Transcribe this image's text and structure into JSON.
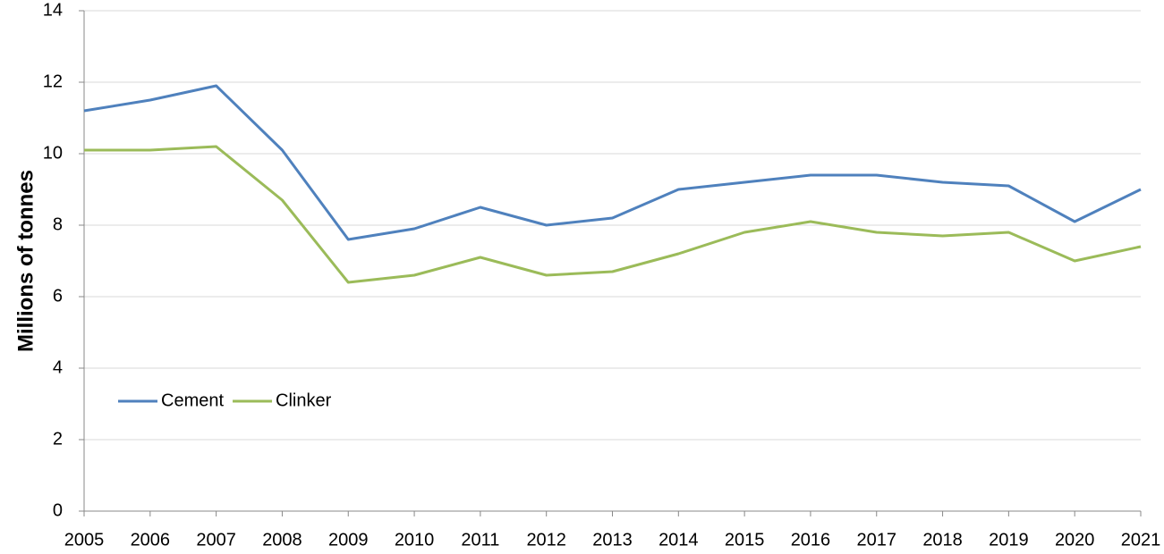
{
  "chart_data": {
    "type": "line",
    "y_label": "Millions of tonnes",
    "x": [
      2005,
      2006,
      2007,
      2008,
      2009,
      2010,
      2011,
      2012,
      2013,
      2014,
      2015,
      2016,
      2017,
      2018,
      2019,
      2020,
      2021
    ],
    "series": [
      {
        "name": "Cement",
        "color": "#4f81bd",
        "values": [
          11.2,
          11.5,
          11.9,
          10.1,
          7.6,
          7.9,
          8.5,
          8.0,
          8.2,
          9.0,
          9.2,
          9.4,
          9.4,
          9.2,
          9.1,
          8.1,
          9.0
        ]
      },
      {
        "name": "Clinker",
        "color": "#9bbb59",
        "values": [
          10.1,
          10.1,
          10.2,
          8.7,
          6.4,
          6.6,
          7.1,
          6.6,
          6.7,
          7.2,
          7.8,
          8.1,
          7.8,
          7.7,
          7.8,
          7.0,
          7.4
        ]
      }
    ],
    "xlim": [
      2005,
      2021
    ],
    "xticks": [
      2005,
      2006,
      2007,
      2008,
      2009,
      2010,
      2011,
      2012,
      2013,
      2014,
      2015,
      2016,
      2017,
      2018,
      2019,
      2020,
      2021
    ],
    "ylim": [
      0,
      14
    ],
    "yticks": [
      0,
      2,
      4,
      6,
      8,
      10,
      12,
      14
    ],
    "grid": true,
    "legend": "lower left"
  }
}
